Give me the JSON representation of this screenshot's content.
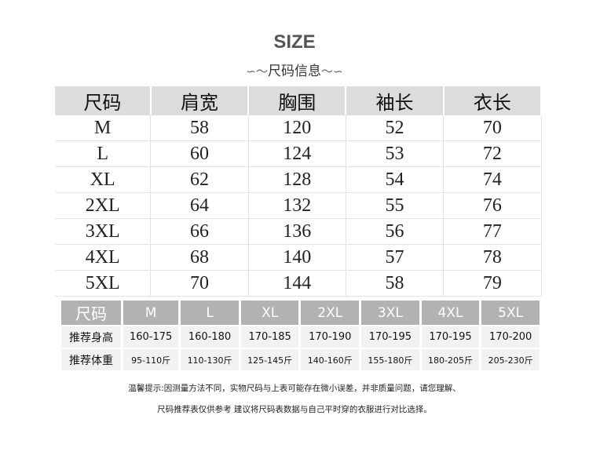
{
  "title": "SIZE",
  "subtitle": "尺码信息",
  "main_table": {
    "headers": [
      "尺码",
      "肩宽",
      "胸围",
      "袖长",
      "衣长"
    ],
    "rows": [
      [
        "M",
        "58",
        "120",
        "52",
        "70"
      ],
      [
        "L",
        "60",
        "124",
        "53",
        "72"
      ],
      [
        "XL",
        "62",
        "128",
        "54",
        "74"
      ],
      [
        "2XL",
        "64",
        "132",
        "55",
        "76"
      ],
      [
        "3XL",
        "66",
        "136",
        "56",
        "77"
      ],
      [
        "4XL",
        "68",
        "140",
        "57",
        "78"
      ],
      [
        "5XL",
        "70",
        "144",
        "58",
        "79"
      ]
    ]
  },
  "recommend_table": {
    "headers": [
      "尺码",
      "M",
      "L",
      "XL",
      "2XL",
      "3XL",
      "4XL",
      "5XL"
    ],
    "rows": [
      [
        "推荐身高",
        "160-175",
        "160-180",
        "170-185",
        "170-190",
        "170-195",
        "170-195",
        "170-200"
      ],
      [
        "推荐体重",
        "95-110斤",
        "110-130斤",
        "125-145斤",
        "140-160斤",
        "155-180斤",
        "180-205斤",
        "205-230斤"
      ]
    ]
  },
  "notes": [
    "温馨提示:因测量方法不同，实物尺码与上表可能存在微小误差，并非质量问题，请您理解、",
    "尺码推荐表仅供参考  建议将尺码表数据与自己平时穿的衣服进行对比选择。"
  ]
}
